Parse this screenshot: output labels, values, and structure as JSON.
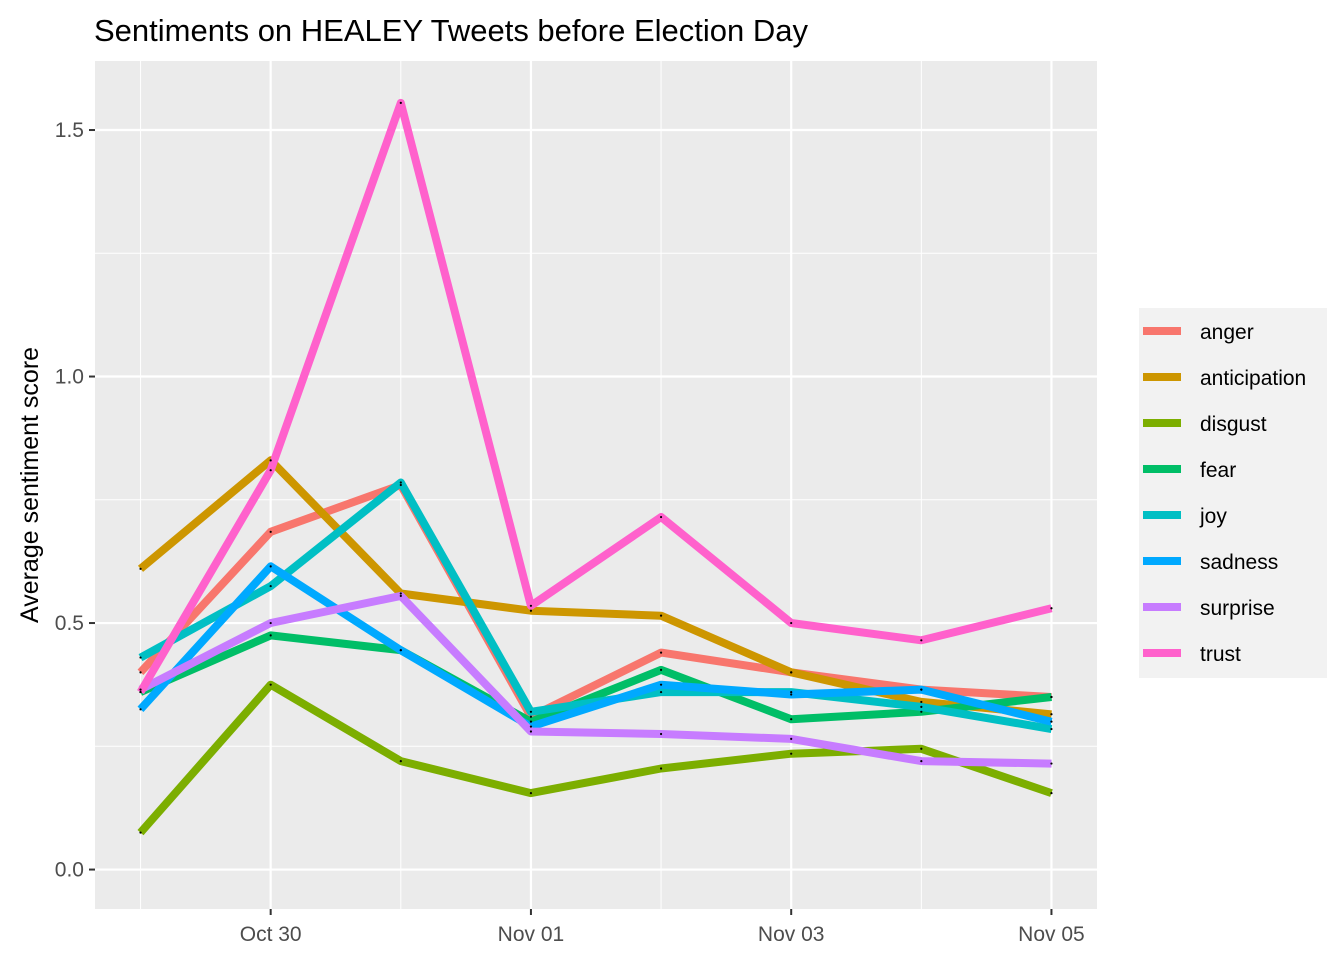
{
  "chart_data": {
    "type": "line",
    "title": "Sentiments on HEALEY Tweets before Election Day",
    "xlabel": "",
    "ylabel": "Average sentiment score",
    "x": [
      "2020-10-29",
      "2020-10-30",
      "2020-10-31",
      "2020-11-01",
      "2020-11-02",
      "2020-11-03",
      "2020-11-04",
      "2020-11-05"
    ],
    "x_ticks": [
      "Oct 30",
      "Nov 01",
      "Nov 03",
      "Nov 05"
    ],
    "y_ticks": [
      "0.0",
      "0.5",
      "1.0",
      "1.5"
    ],
    "ylim": [
      -0.08,
      1.64
    ],
    "grid": true,
    "legend_position": "right",
    "series": [
      {
        "name": "anger",
        "color": "#F8766D",
        "values": [
          0.4,
          0.685,
          0.78,
          0.31,
          0.44,
          0.4,
          0.365,
          0.35
        ]
      },
      {
        "name": "anticipation",
        "color": "#CD9600",
        "values": [
          0.61,
          0.83,
          0.56,
          0.525,
          0.515,
          0.4,
          0.34,
          0.315
        ]
      },
      {
        "name": "disgust",
        "color": "#7CAE00",
        "values": [
          0.075,
          0.375,
          0.22,
          0.155,
          0.205,
          0.235,
          0.245,
          0.155
        ]
      },
      {
        "name": "fear",
        "color": "#00BE67",
        "values": [
          0.36,
          0.475,
          0.445,
          0.3,
          0.405,
          0.305,
          0.32,
          0.35
        ]
      },
      {
        "name": "joy",
        "color": "#00BFC4",
        "values": [
          0.43,
          0.575,
          0.785,
          0.32,
          0.36,
          0.36,
          0.33,
          0.285
        ]
      },
      {
        "name": "sadness",
        "color": "#00A9FF",
        "values": [
          0.325,
          0.615,
          0.445,
          0.29,
          0.375,
          0.355,
          0.365,
          0.3
        ]
      },
      {
        "name": "surprise",
        "color": "#C77CFF",
        "values": [
          0.365,
          0.5,
          0.555,
          0.28,
          0.275,
          0.265,
          0.22,
          0.215
        ]
      },
      {
        "name": "trust",
        "color": "#FF61CC",
        "values": [
          0.36,
          0.81,
          1.555,
          0.535,
          0.715,
          0.5,
          0.465,
          0.53
        ]
      }
    ]
  }
}
